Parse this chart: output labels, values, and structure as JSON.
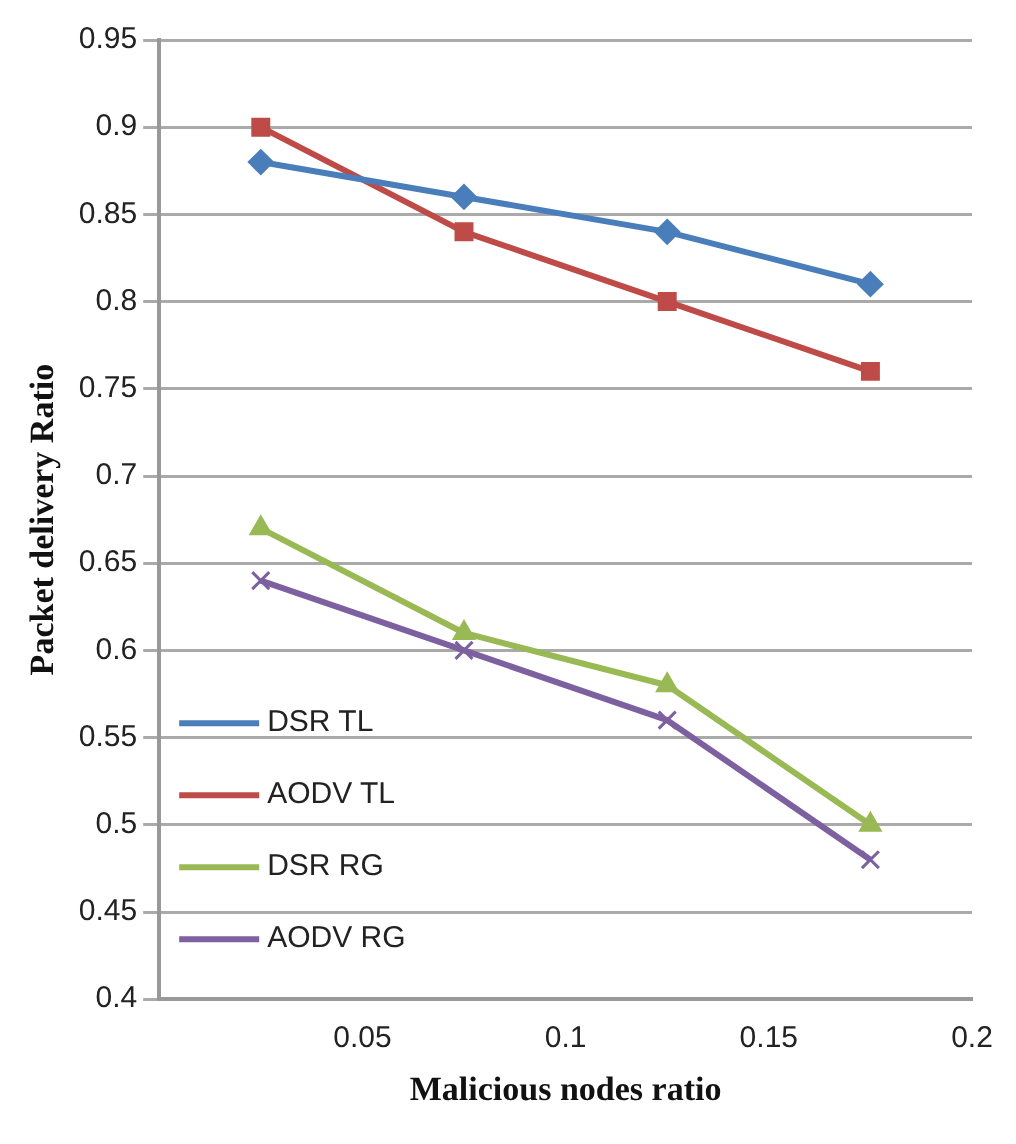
{
  "chart_data": {
    "type": "line",
    "xlabel": "Malicious nodes ratio",
    "ylabel": "Packet delivery Ratio",
    "x": [
      0.025,
      0.075,
      0.125,
      0.175
    ],
    "xlim": [
      0,
      0.2
    ],
    "xticks": [
      0.05,
      0.1,
      0.15,
      0.2
    ],
    "ylim": [
      0.4,
      0.95
    ],
    "yticks": [
      0.4,
      0.45,
      0.5,
      0.55,
      0.6,
      0.65,
      0.7,
      0.75,
      0.8,
      0.85,
      0.9,
      0.95
    ],
    "grid": "y",
    "legend": "bottom left",
    "line_style": "solid",
    "series": [
      {
        "name": "DSR TL",
        "color": "#4a7ebb",
        "marker": "diamond",
        "values": [
          0.88,
          0.86,
          0.84,
          0.81
        ]
      },
      {
        "name": "AODV TL",
        "color": "#be4b48",
        "marker": "square",
        "values": [
          0.9,
          0.84,
          0.8,
          0.76
        ]
      },
      {
        "name": "DSR RG",
        "color": "#98b954",
        "marker": "triangle",
        "values": [
          0.67,
          0.61,
          0.58,
          0.5
        ]
      },
      {
        "name": "AODV RG",
        "color": "#7d60a0",
        "marker": "cross",
        "values": [
          0.64,
          0.6,
          0.56,
          0.48
        ]
      }
    ]
  }
}
